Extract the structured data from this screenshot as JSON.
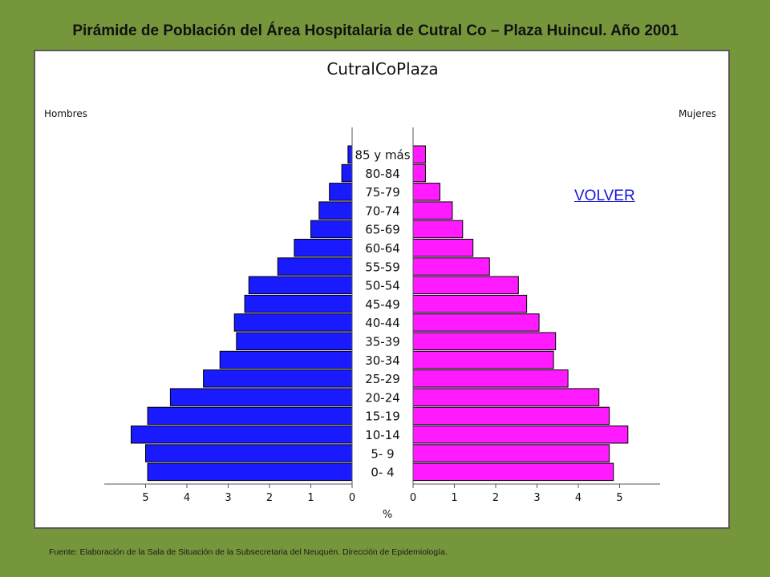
{
  "slide": {
    "title": "Pirámide de Población del Área Hospitalaria de Cutral Co – Plaza Huincul. Año 2001",
    "link_label": "VOLVER",
    "source": "Fuente: Elaboración de la Sala de Situación de la Subsecretaria del Neuquén. Dirección de Epidemiología."
  },
  "colors": {
    "male": "#1a1aff",
    "female": "#ff1aff",
    "background": "#76963c",
    "link": "#1515d8"
  },
  "chart_data": {
    "type": "population-pyramid",
    "title": "CutralCoPlaza",
    "left_label": "Hombres",
    "right_label": "Mujeres",
    "xlabel": "%",
    "xlim": [
      0,
      6
    ],
    "ticks": [
      0,
      1,
      2,
      3,
      4,
      5
    ],
    "categories": [
      "85 y más",
      "80-84",
      "75-79",
      "70-74",
      "65-69",
      "60-64",
      "55-59",
      "50-54",
      "45-49",
      "40-44",
      "35-39",
      "30-34",
      "25-29",
      "20-24",
      "15-19",
      "10-14",
      "5- 9",
      "0- 4"
    ],
    "series": [
      {
        "name": "Hombres",
        "values": [
          0.1,
          0.25,
          0.55,
          0.8,
          1.0,
          1.4,
          1.8,
          2.5,
          2.6,
          2.85,
          2.8,
          3.2,
          3.6,
          4.4,
          4.95,
          5.35,
          5.0,
          4.95
        ]
      },
      {
        "name": "Mujeres",
        "values": [
          0.3,
          0.3,
          0.65,
          0.95,
          1.2,
          1.45,
          1.85,
          2.55,
          2.75,
          3.05,
          3.45,
          3.4,
          3.75,
          4.5,
          4.75,
          5.2,
          4.75,
          4.85
        ]
      }
    ]
  }
}
